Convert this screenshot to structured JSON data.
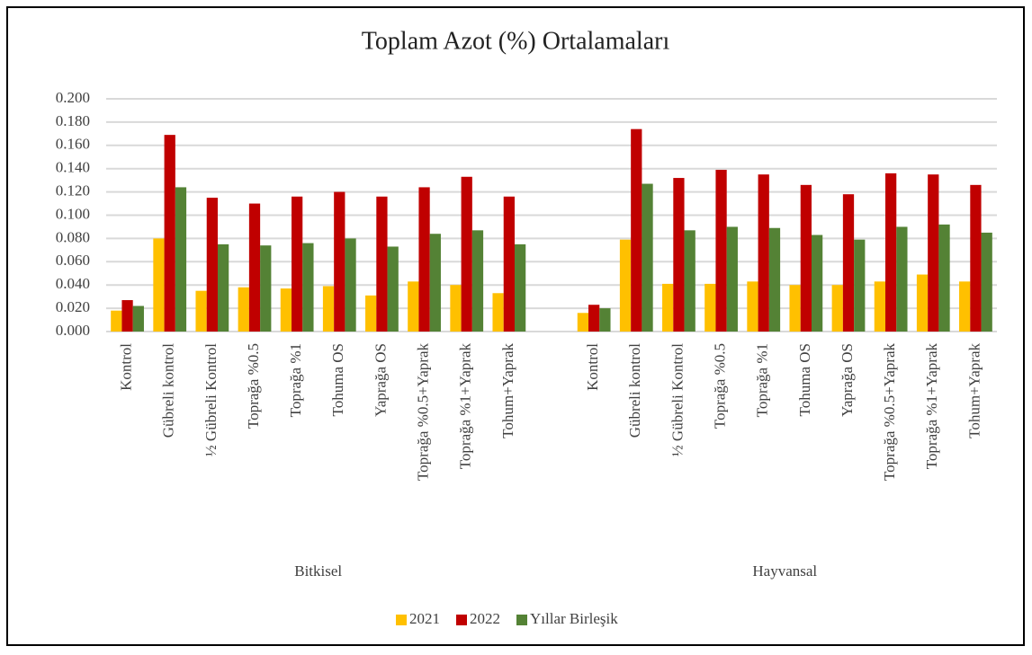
{
  "chart_data": {
    "type": "bar",
    "title": "Toplam Azot (%) Ortalamaları",
    "categories": [
      "Kontrol",
      "Gübreli kontrol",
      "½ Gübreli Kontrol",
      "Toprağa %0.5",
      "Toprağa %1",
      "Tohuma OS",
      "Yaprağa OS",
      "Toprağa %0.5+Yaprak",
      "Toprağa %1+Yaprak",
      "Tohum+Yaprak",
      null,
      "Kontrol",
      "Gübreli kontrol",
      "½ Gübreli Kontrol",
      "Toprağa %0.5",
      "Toprağa %1",
      "Tohuma OS",
      "Yaprağa OS",
      "Toprağa %0.5+Yaprak",
      "Toprağa %1+Yaprak",
      "Tohum+Yaprak"
    ],
    "groups": [
      "Bitkisel",
      "Hayvansal"
    ],
    "series": [
      {
        "name": "2021",
        "color": "#ffc000",
        "values": [
          0.018,
          0.08,
          0.035,
          0.038,
          0.037,
          0.039,
          0.031,
          0.043,
          0.04,
          0.033,
          null,
          0.016,
          0.079,
          0.041,
          0.041,
          0.043,
          0.04,
          0.04,
          0.043,
          0.049,
          0.043
        ]
      },
      {
        "name": "2022",
        "color": "#c00000",
        "values": [
          0.027,
          0.169,
          0.115,
          0.11,
          0.116,
          0.12,
          0.116,
          0.124,
          0.133,
          0.116,
          null,
          0.023,
          0.174,
          0.132,
          0.139,
          0.135,
          0.126,
          0.118,
          0.136,
          0.135,
          0.126
        ]
      },
      {
        "name": "Yıllar Birleşik",
        "color": "#548235",
        "values": [
          0.022,
          0.124,
          0.075,
          0.074,
          0.076,
          0.08,
          0.073,
          0.084,
          0.087,
          0.075,
          null,
          0.02,
          0.127,
          0.087,
          0.09,
          0.089,
          0.083,
          0.079,
          0.09,
          0.092,
          0.085
        ]
      }
    ],
    "ylim": [
      0,
      0.2
    ],
    "yticks": [
      {
        "value": 0,
        "label": "0.000"
      },
      {
        "value": 0.02,
        "label": "0.020"
      },
      {
        "value": 0.04,
        "label": "0.040"
      },
      {
        "value": 0.06,
        "label": "0.060"
      },
      {
        "value": 0.08,
        "label": "0.080"
      },
      {
        "value": 0.1,
        "label": "0.100"
      },
      {
        "value": 0.12,
        "label": "0.120"
      },
      {
        "value": 0.14,
        "label": "0.140"
      },
      {
        "value": 0.16,
        "label": "0.160"
      },
      {
        "value": 0.18,
        "label": "0.180"
      },
      {
        "value": 0.2,
        "label": "0.200"
      }
    ],
    "grid": true,
    "legend": "bottom"
  }
}
